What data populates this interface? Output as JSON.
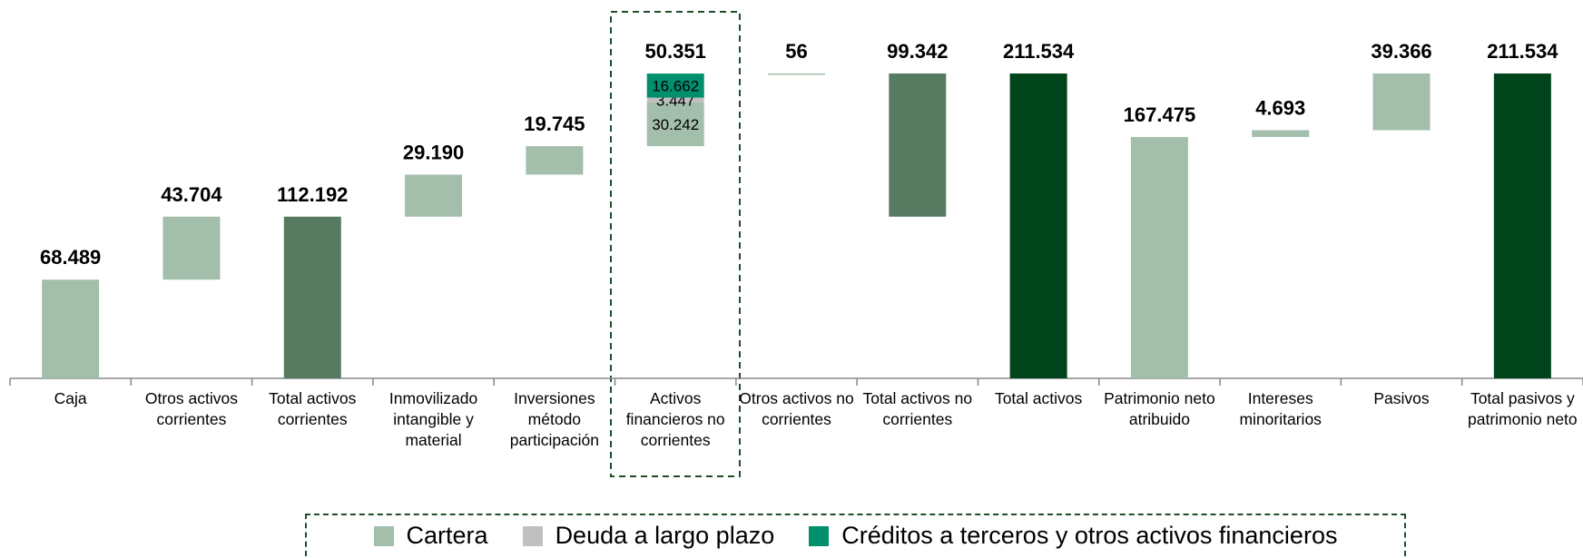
{
  "chart_data": {
    "type": "waterfall",
    "categories": [
      "Caja",
      "Otros activos corrientes",
      "Total activos corrientes",
      "Inmovilizado intangible y material",
      "Inversiones método participación",
      "Activos financieros no corrientes",
      "Otros activos no corrientes",
      "Total activos no corrientes",
      "Total activos",
      "Patrimonio neto atribuido",
      "Intereses minoritarios",
      "Pasivos",
      "Total pasivos y patrimonio neto"
    ],
    "values": [
      68489,
      43704,
      112192,
      29190,
      19745,
      50351,
      56,
      99342,
      211534,
      167475,
      4693,
      39366,
      211534
    ],
    "value_labels": [
      "68.489",
      "43.704",
      "112.192",
      "29.190",
      "19.745",
      "50.351",
      "56",
      "99.342",
      "211.534",
      "167.475",
      "4.693",
      "39.366",
      "211.534"
    ],
    "bar_kinds": [
      "step",
      "step",
      "subtotal",
      "step",
      "step",
      "step",
      "step",
      "span",
      "total",
      "step",
      "step",
      "step",
      "total"
    ],
    "kind_colors": {
      "step": "#a3bfab",
      "subtotal": "#567b61",
      "span": "#567b61",
      "total": "#00441b"
    },
    "stack": {
      "category": "Activos financieros no corrientes",
      "series": [
        {
          "name": "Cartera",
          "color": "#a3bfab",
          "values": [
            30242
          ],
          "value_labels": [
            "30.242"
          ]
        },
        {
          "name": "Deuda a largo plazo",
          "color": "#c0c0c0",
          "values": [
            3447
          ],
          "value_labels": [
            "3.447"
          ]
        },
        {
          "name": "Créditos a terceros y otros activos financieros",
          "color": "#00906e",
          "values": [
            16662
          ],
          "value_labels": [
            "16.662"
          ]
        }
      ]
    }
  }
}
